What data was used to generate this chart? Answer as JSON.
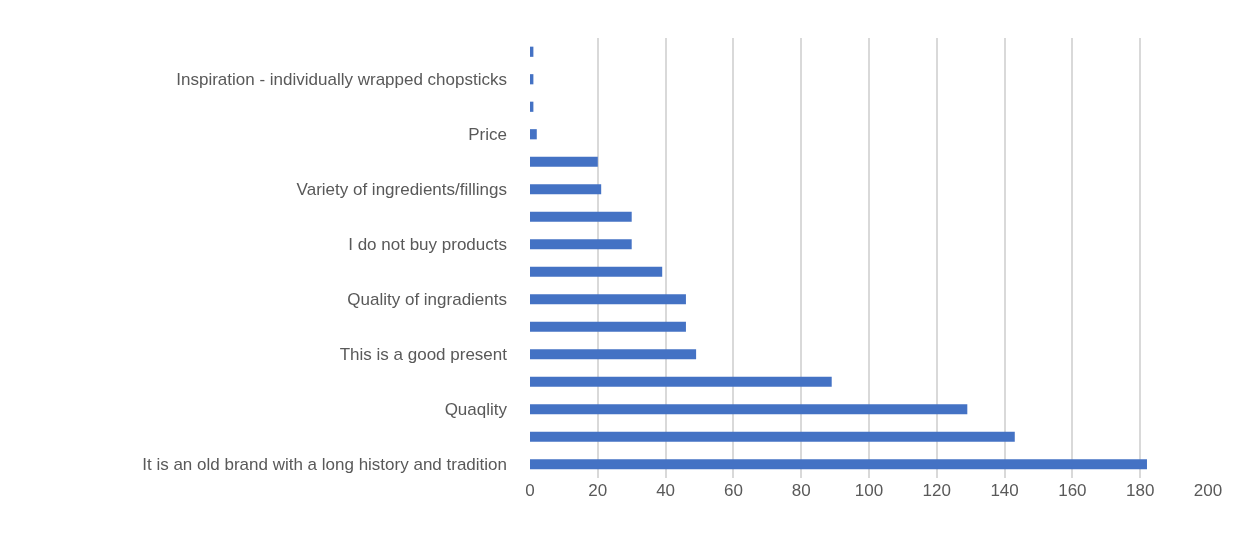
{
  "chart_data": {
    "type": "bar",
    "orientation": "horizontal",
    "categories": [
      null,
      "Inspiration - individually wrapped chopsticks",
      null,
      "Price",
      null,
      "Variety of ingredients/fillings",
      null,
      "I do not buy products",
      null,
      "Quality of ingradients",
      null,
      "This is a good present",
      null,
      "Quaqlity",
      null,
      "It is an old brand with a long history and tradition"
    ],
    "values": [
      1,
      1,
      1,
      2,
      20,
      21,
      30,
      30,
      39,
      46,
      46,
      49,
      89,
      129,
      143,
      182
    ],
    "color": "#4472c4",
    "xlim": [
      0,
      200
    ],
    "xticks": [
      0,
      20,
      40,
      60,
      80,
      100,
      120,
      140,
      160,
      180,
      200
    ],
    "grid": "x"
  }
}
